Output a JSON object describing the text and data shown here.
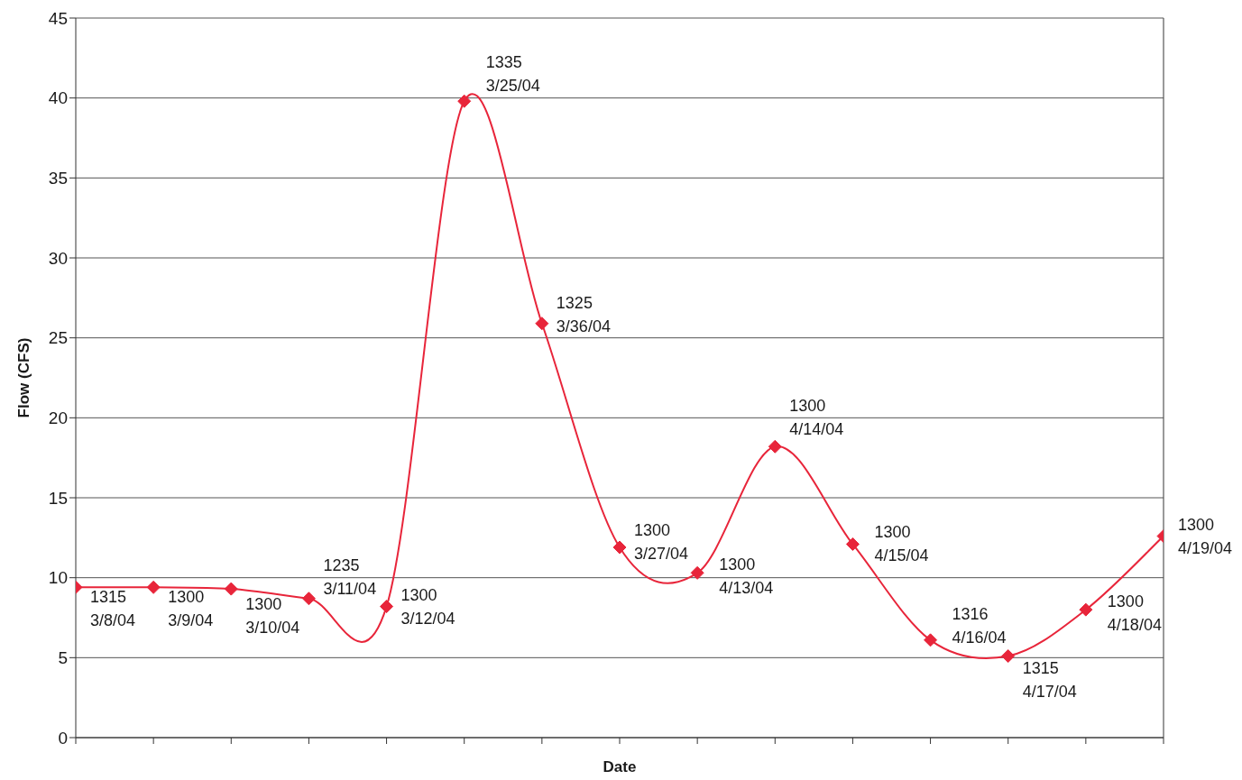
{
  "chart_data": {
    "type": "line",
    "xlabel": "Date",
    "ylabel": "Flow (CFS)",
    "categories": [
      null,
      null,
      null,
      null,
      null,
      null,
      null,
      null,
      null,
      null,
      null,
      null,
      null,
      null,
      null
    ],
    "series": [
      {
        "color": "#e8253a",
        "values": [
          9.4,
          9.4,
          9.3,
          8.7,
          8.2,
          39.8,
          25.9,
          11.9,
          10.3,
          18.2,
          12.1,
          6.1,
          5.1,
          8.0,
          12.6
        ]
      }
    ],
    "annotations": [
      "1315\n3/8/04",
      "1300\n3/9/04",
      "1300\n3/10/04",
      "1235\n3/11/04",
      "1300\n3/12/04",
      "1335\n3/25/04",
      "1325\n3/36/04",
      "1300\n3/27/04",
      "1300\n4/13/04",
      "1300\n4/14/04",
      "1300\n4/15/04",
      "1316\n4/16/04",
      "1315\n4/17/04",
      "1300\n4/18/04",
      "1300\n4/19/04"
    ],
    "ylim": [
      0,
      45
    ],
    "yticks": [
      0,
      5,
      10,
      15,
      20,
      25,
      30,
      35,
      40,
      45
    ],
    "grid": "y",
    "marker": "diamond",
    "line_style": "solid"
  }
}
